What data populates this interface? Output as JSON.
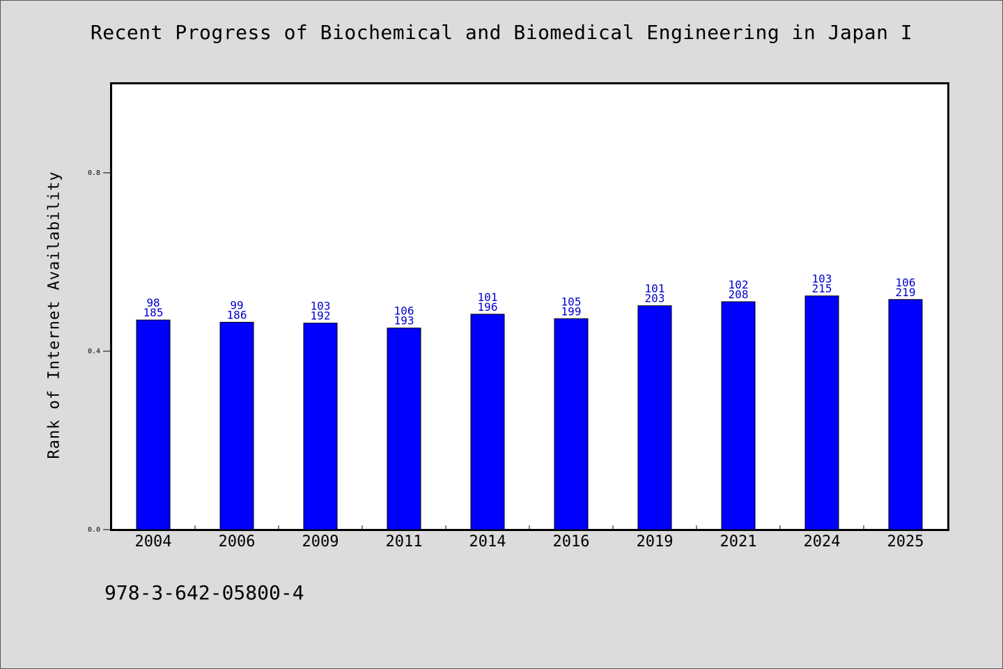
{
  "chart_data": {
    "type": "bar",
    "title": "Recent Progress of Biochemical and Biomedical Engineering in Japan I",
    "ylabel": "Rank of Internet Availability",
    "xlabel": "",
    "ylim": [
      0,
      1.0
    ],
    "yticks": [
      "0.0",
      "0.4",
      "0.8"
    ],
    "categories": [
      "2004",
      "2006",
      "2009",
      "2011",
      "2014",
      "2016",
      "2019",
      "2021",
      "2024",
      "2025"
    ],
    "values": [
      0.47,
      0.465,
      0.463,
      0.452,
      0.483,
      0.473,
      0.502,
      0.511,
      0.524,
      0.516
    ],
    "labels_top": [
      "98",
      "99",
      "103",
      "106",
      "101",
      "105",
      "101",
      "102",
      "103",
      "106"
    ],
    "labels_bottom": [
      "185",
      "186",
      "192",
      "193",
      "196",
      "199",
      "203",
      "208",
      "215",
      "219"
    ],
    "bar_color": "#0000ff",
    "label_color": "#0000cc",
    "grid": false,
    "legend": "none"
  },
  "footer": {
    "isbn": "978-3-642-05800-4"
  }
}
